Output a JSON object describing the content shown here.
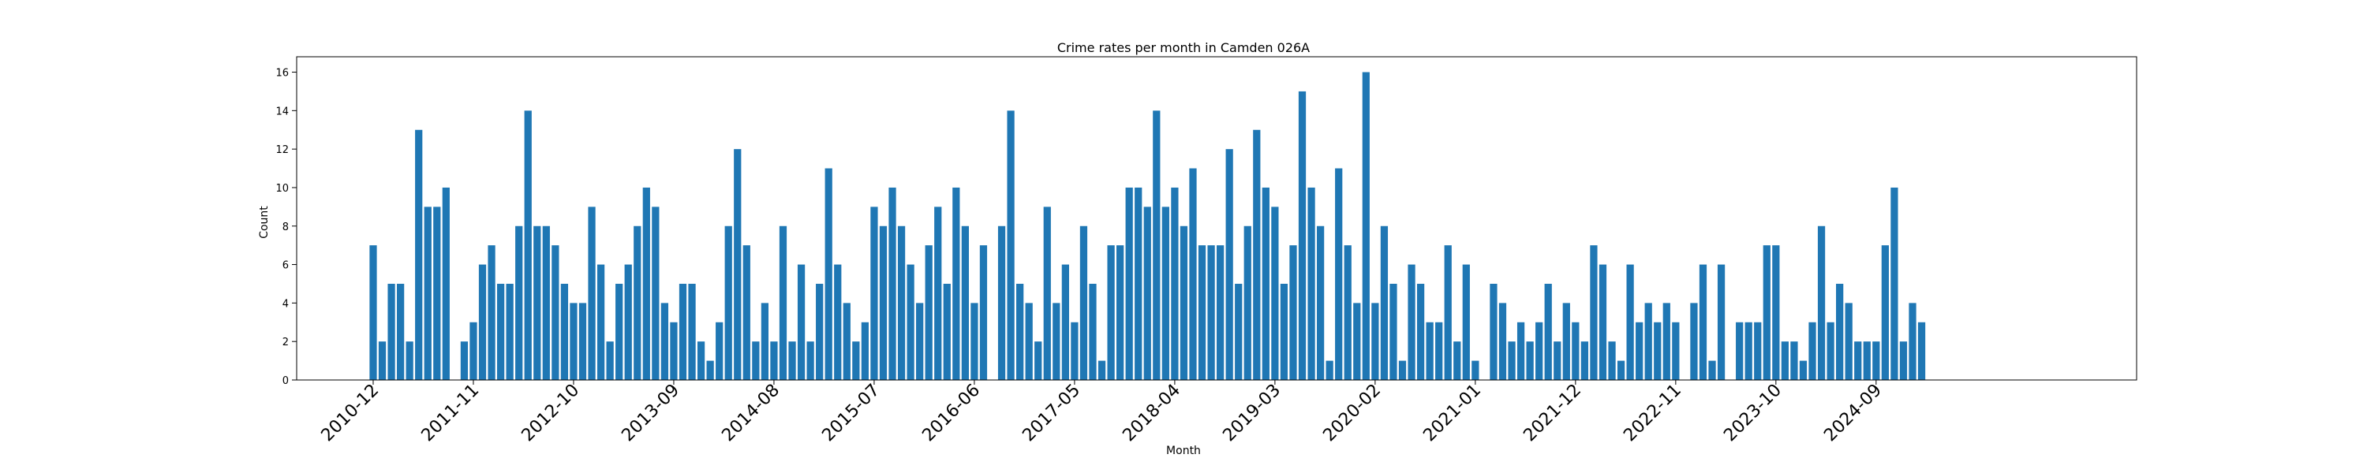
{
  "chart_data": {
    "type": "bar",
    "title": "Crime rates per month in Camden 026A",
    "xlabel": "Month",
    "ylabel": "Count",
    "ylim": [
      0,
      16.8
    ],
    "yticks": [
      "0",
      "2",
      "4",
      "6",
      "8",
      "10",
      "12",
      "14",
      "16"
    ],
    "grid": false,
    "bar_color": "#1f77b4",
    "start_month": "2010-12",
    "xtick_labels": [
      "2010-12",
      "2011-11",
      "2012-10",
      "2013-09",
      "2014-08",
      "2015-07",
      "2016-06",
      "2017-05",
      "2018-04",
      "2019-03",
      "2020-02",
      "2021-01",
      "2021-12",
      "2022-11",
      "2023-10",
      "2024-09"
    ],
    "values": [
      7,
      2,
      5,
      5,
      2,
      13,
      9,
      9,
      10,
      0,
      2,
      3,
      6,
      7,
      5,
      5,
      8,
      14,
      8,
      8,
      7,
      5,
      4,
      4,
      9,
      6,
      2,
      5,
      6,
      8,
      10,
      9,
      4,
      3,
      5,
      5,
      2,
      1,
      3,
      8,
      12,
      7,
      2,
      4,
      2,
      8,
      2,
      6,
      2,
      5,
      11,
      6,
      4,
      2,
      3,
      9,
      8,
      10,
      8,
      6,
      4,
      7,
      9,
      5,
      10,
      8,
      4,
      7,
      0,
      8,
      14,
      5,
      4,
      2,
      9,
      4,
      6,
      3,
      8,
      5,
      1,
      7,
      7,
      10,
      10,
      9,
      14,
      9,
      10,
      8,
      11,
      7,
      7,
      7,
      12,
      5,
      8,
      13,
      10,
      9,
      5,
      7,
      15,
      10,
      8,
      1,
      11,
      7,
      4,
      16,
      4,
      8,
      5,
      1,
      6,
      5,
      3,
      3,
      7,
      2,
      6,
      1,
      0,
      5,
      4,
      2,
      3,
      2,
      3,
      5,
      2,
      4,
      3,
      2,
      7,
      6,
      2,
      1,
      6,
      3,
      4,
      3,
      4,
      3,
      0,
      4,
      6,
      1,
      6,
      0,
      3,
      3,
      3,
      7,
      7,
      2,
      2,
      1,
      3,
      8,
      3,
      5,
      4,
      2,
      2,
      2,
      7,
      10,
      2,
      4,
      3
    ]
  }
}
